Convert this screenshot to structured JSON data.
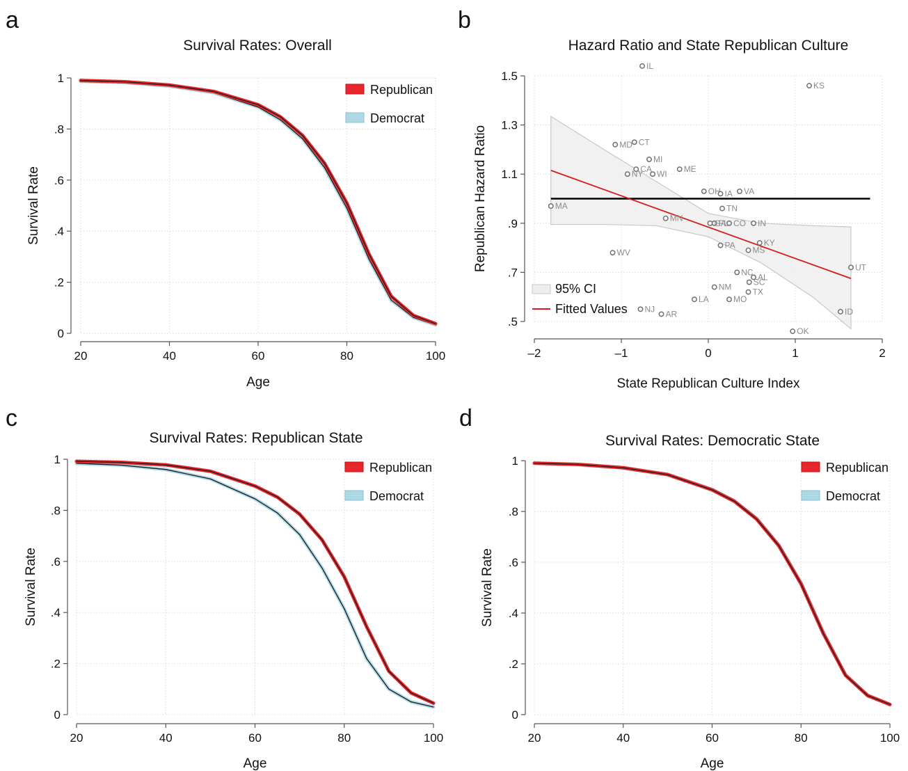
{
  "chart_data": [
    {
      "panel": "a",
      "type": "line",
      "title": "Survival Rates: Overall",
      "xlabel": "Age",
      "ylabel": "Survival Rate",
      "xlim": [
        20,
        100
      ],
      "ylim": [
        0,
        1
      ],
      "xticks": [
        "20",
        "40",
        "60",
        "80",
        "100"
      ],
      "yticks": [
        "0",
        ".2",
        ".4",
        ".6",
        ".8",
        "1"
      ],
      "grid": true,
      "legend_position": "top-right",
      "colors": {
        "Republican": "#e8262b",
        "Democrat": "#add8e6"
      },
      "series": [
        {
          "name": "Republican",
          "x": [
            20,
            30,
            40,
            50,
            60,
            65,
            70,
            75,
            80,
            85,
            90,
            95,
            100
          ],
          "y": [
            0.99,
            0.985,
            0.972,
            0.947,
            0.895,
            0.848,
            0.775,
            0.665,
            0.51,
            0.31,
            0.145,
            0.07,
            0.038
          ]
        },
        {
          "name": "Democrat",
          "x": [
            20,
            30,
            40,
            50,
            60,
            65,
            70,
            75,
            80,
            85,
            90,
            95,
            100
          ],
          "y": [
            0.987,
            0.982,
            0.968,
            0.942,
            0.886,
            0.836,
            0.762,
            0.648,
            0.49,
            0.29,
            0.13,
            0.062,
            0.033
          ]
        }
      ]
    },
    {
      "panel": "b",
      "type": "scatter",
      "title": "Hazard Ratio and State Republican Culture",
      "xlabel": "State Republican Culture Index",
      "ylabel": "Republican Hazard Ratio",
      "xlim": [
        -2,
        2
      ],
      "ylim": [
        0.5,
        1.5
      ],
      "xticks": [
        "–2",
        "–1",
        "0",
        "1",
        "2"
      ],
      "yticks": [
        ".5",
        ".7",
        ".9",
        "1.1",
        "1.3",
        "1.5"
      ],
      "grid": true,
      "legend": [
        "95% CI",
        "Fitted Values"
      ],
      "legend_position": "bottom-left",
      "reference_line_y": 1.0,
      "points": [
        {
          "label": "IL",
          "x": -0.76,
          "y": 1.54
        },
        {
          "label": "KS",
          "x": 1.16,
          "y": 1.46
        },
        {
          "label": "CT",
          "x": -0.85,
          "y": 1.23
        },
        {
          "label": "MD",
          "x": -1.07,
          "y": 1.22
        },
        {
          "label": "MI",
          "x": -0.68,
          "y": 1.16
        },
        {
          "label": "CA",
          "x": -0.83,
          "y": 1.12
        },
        {
          "label": "ME",
          "x": -0.33,
          "y": 1.12
        },
        {
          "label": "NY",
          "x": -0.93,
          "y": 1.1
        },
        {
          "label": "WI",
          "x": -0.64,
          "y": 1.1
        },
        {
          "label": "OH",
          "x": -0.05,
          "y": 1.03
        },
        {
          "label": "IA",
          "x": 0.14,
          "y": 1.02
        },
        {
          "label": "VA",
          "x": 0.36,
          "y": 1.03
        },
        {
          "label": "MA",
          "x": -1.81,
          "y": 0.97
        },
        {
          "label": "TN",
          "x": 0.16,
          "y": 0.96
        },
        {
          "label": "FL",
          "x": 0.07,
          "y": 0.9
        },
        {
          "label": "MN",
          "x": -0.49,
          "y": 0.92
        },
        {
          "label": "GA",
          "x": 0.02,
          "y": 0.9
        },
        {
          "label": "CO",
          "x": 0.24,
          "y": 0.9
        },
        {
          "label": "IN",
          "x": 0.52,
          "y": 0.9
        },
        {
          "label": "KY",
          "x": 0.59,
          "y": 0.82
        },
        {
          "label": "PA",
          "x": 0.14,
          "y": 0.81
        },
        {
          "label": "MS",
          "x": 0.46,
          "y": 0.79
        },
        {
          "label": "WV",
          "x": -1.1,
          "y": 0.78
        },
        {
          "label": "UT",
          "x": 1.64,
          "y": 0.72
        },
        {
          "label": "NC",
          "x": 0.33,
          "y": 0.7
        },
        {
          "label": "AL",
          "x": 0.52,
          "y": 0.68
        },
        {
          "label": "SC",
          "x": 0.47,
          "y": 0.66
        },
        {
          "label": "NM",
          "x": 0.07,
          "y": 0.64
        },
        {
          "label": "TX",
          "x": 0.46,
          "y": 0.62
        },
        {
          "label": "LA",
          "x": -0.16,
          "y": 0.59
        },
        {
          "label": "MO",
          "x": 0.24,
          "y": 0.59
        },
        {
          "label": "NJ",
          "x": -0.78,
          "y": 0.55
        },
        {
          "label": "AR",
          "x": -0.54,
          "y": 0.53
        },
        {
          "label": "ID",
          "x": 1.52,
          "y": 0.54
        },
        {
          "label": "OK",
          "x": 0.97,
          "y": 0.46
        }
      ],
      "fitted_line": {
        "x": [
          -1.81,
          1.64
        ],
        "y": [
          1.115,
          0.675
        ]
      },
      "confidence_band": {
        "x": [
          -1.81,
          -1.2,
          -0.6,
          0.0,
          0.6,
          1.2,
          1.64
        ],
        "lower": [
          0.895,
          0.895,
          0.89,
          0.845,
          0.74,
          0.6,
          0.47
        ],
        "upper": [
          1.335,
          1.2,
          1.07,
          0.94,
          0.9,
          0.89,
          0.885
        ]
      }
    },
    {
      "panel": "c",
      "type": "line",
      "title": "Survival Rates: Republican State",
      "xlabel": "Age",
      "ylabel": "Survival Rate",
      "xlim": [
        20,
        100
      ],
      "ylim": [
        0,
        1
      ],
      "xticks": [
        "20",
        "40",
        "60",
        "80",
        "100"
      ],
      "yticks": [
        "0",
        ".2",
        ".4",
        ".6",
        ".8",
        "1"
      ],
      "grid": true,
      "legend_position": "top-right",
      "colors": {
        "Republican": "#e8262b",
        "Democrat": "#add8e6"
      },
      "series": [
        {
          "name": "Republican",
          "x": [
            20,
            30,
            40,
            50,
            60,
            65,
            70,
            75,
            80,
            85,
            90,
            95,
            100
          ],
          "y": [
            0.992,
            0.988,
            0.978,
            0.953,
            0.895,
            0.852,
            0.785,
            0.685,
            0.54,
            0.345,
            0.17,
            0.085,
            0.045
          ]
        },
        {
          "name": "Democrat",
          "x": [
            20,
            30,
            40,
            50,
            60,
            65,
            70,
            75,
            80,
            85,
            90,
            95,
            100
          ],
          "y": [
            0.984,
            0.977,
            0.96,
            0.923,
            0.845,
            0.79,
            0.705,
            0.575,
            0.415,
            0.22,
            0.1,
            0.05,
            0.03
          ]
        }
      ]
    },
    {
      "panel": "d",
      "type": "line",
      "title": "Survival Rates: Democratic State",
      "xlabel": "Age",
      "ylabel": "Survival Rate",
      "xlim": [
        20,
        100
      ],
      "ylim": [
        0,
        1
      ],
      "xticks": [
        "20",
        "40",
        "60",
        "80",
        "100"
      ],
      "yticks": [
        "0",
        ".2",
        ".4",
        ".6",
        ".8",
        "1"
      ],
      "grid": true,
      "legend_position": "top-right",
      "colors": {
        "Republican": "#e8262b",
        "Democrat": "#add8e6"
      },
      "series": [
        {
          "name": "Republican",
          "x": [
            20,
            30,
            40,
            50,
            60,
            65,
            70,
            75,
            80,
            85,
            90,
            95,
            100
          ],
          "y": [
            0.99,
            0.985,
            0.972,
            0.945,
            0.885,
            0.84,
            0.77,
            0.665,
            0.515,
            0.32,
            0.155,
            0.075,
            0.04
          ]
        },
        {
          "name": "Democrat",
          "x": [
            20,
            30,
            40,
            50,
            60,
            65,
            70,
            75,
            80,
            85,
            90,
            95,
            100
          ],
          "y": [
            0.99,
            0.985,
            0.972,
            0.946,
            0.887,
            0.842,
            0.773,
            0.668,
            0.52,
            0.325,
            0.157,
            0.076,
            0.04
          ]
        }
      ]
    }
  ]
}
